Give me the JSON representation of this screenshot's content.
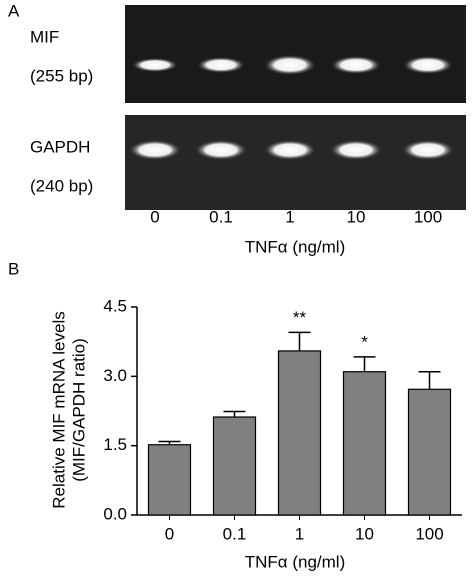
{
  "panel_a": {
    "label": "A",
    "rows": [
      {
        "name": "MIF",
        "size": "(255 bp)"
      },
      {
        "name": "GAPDH",
        "size": "(240 bp)"
      }
    ],
    "lanes": [
      "0",
      "0.1",
      "1",
      "10",
      "100"
    ],
    "x_label": "TNFα (ng/ml)"
  },
  "chart_data": {
    "type": "bar",
    "panel_label": "B",
    "y_label": [
      "Relative MIF mRNA levels",
      "(MIF/GAPDH ratio)"
    ],
    "x_label": "TNFα (ng/ml)",
    "categories": [
      "0",
      "0.1",
      "1",
      "10",
      "100"
    ],
    "values": [
      1.52,
      2.12,
      3.55,
      3.1,
      2.72
    ],
    "errors": [
      0.07,
      0.12,
      0.4,
      0.32,
      0.38
    ],
    "annotations": [
      null,
      null,
      "**",
      "*",
      null
    ],
    "color": "#808080",
    "ylim": [
      0,
      4.5
    ],
    "yticks": [
      {
        "value": 0,
        "label": "0.0"
      },
      {
        "value": 1.5,
        "label": "1.5"
      },
      {
        "value": 3,
        "label": "3.0"
      },
      {
        "value": 4.5,
        "label": "4.5"
      }
    ]
  }
}
